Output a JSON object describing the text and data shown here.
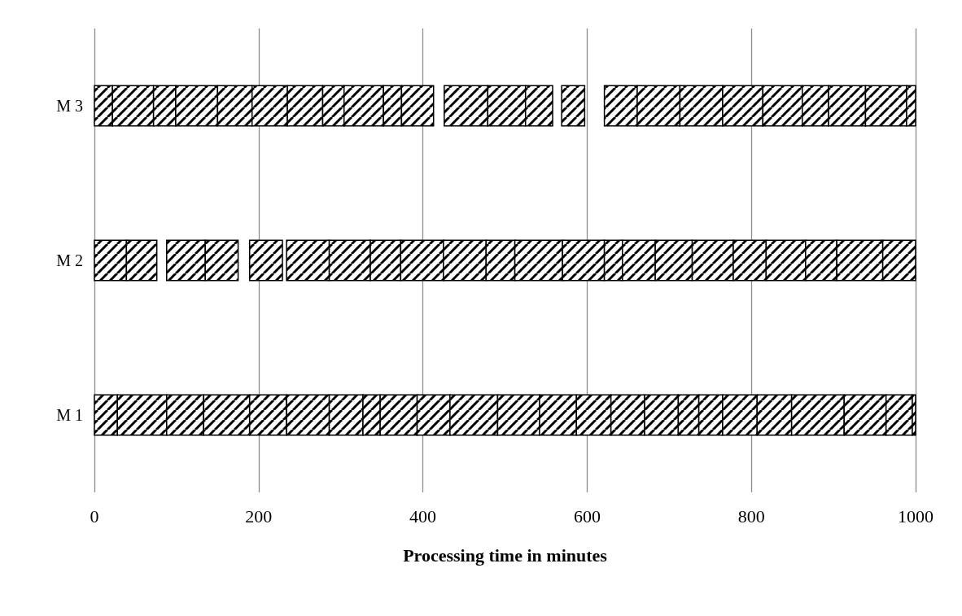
{
  "chart_data": {
    "type": "bar",
    "orientation": "horizontal",
    "xlabel": "Processing time in minutes",
    "categories": [
      "M 3",
      "M 2",
      "M 1"
    ],
    "xlim": [
      0,
      1000
    ],
    "xticks": [
      0,
      200,
      400,
      600,
      800,
      1000
    ],
    "grid": "x",
    "series": [
      {
        "color": "#000000",
        "base": [
          0,
          0,
          0
        ],
        "values": [
          22,
          39,
          28
        ]
      },
      {
        "color": "#000000",
        "base": [
          22,
          39,
          28
        ],
        "values": [
          50,
          37,
          60
        ]
      },
      {
        "color": "#000000",
        "base": [
          72,
          88,
          88
        ],
        "values": [
          27,
          47,
          45
        ]
      },
      {
        "color": "#000000",
        "base": [
          99,
          135,
          133
        ],
        "values": [
          51,
          40,
          56
        ]
      },
      {
        "color": "#000000",
        "base": [
          150,
          189,
          189
        ],
        "values": [
          42,
          40,
          45
        ]
      },
      {
        "color": "#000000",
        "base": [
          192,
          234,
          234
        ],
        "values": [
          43,
          52,
          52
        ]
      },
      {
        "color": "#000000",
        "base": [
          235,
          286,
          286
        ],
        "values": [
          43,
          50,
          41
        ]
      },
      {
        "color": "#000000",
        "base": [
          278,
          336,
          327
        ],
        "values": [
          26,
          37,
          21
        ]
      },
      {
        "color": "#000000",
        "base": [
          304,
          373,
          348
        ],
        "values": [
          48,
          52,
          45
        ]
      },
      {
        "color": "#000000",
        "base": [
          352,
          425,
          393
        ],
        "values": [
          22,
          52,
          40
        ]
      },
      {
        "color": "#000000",
        "base": [
          374,
          477,
          433
        ],
        "values": [
          39,
          35,
          58
        ]
      },
      {
        "color": "#000000",
        "base": [
          426,
          512,
          491
        ],
        "values": [
          53,
          58,
          51
        ]
      },
      {
        "color": "#000000",
        "base": [
          479,
          570,
          542
        ],
        "values": [
          46,
          51,
          45
        ]
      },
      {
        "color": "#000000",
        "base": [
          525,
          621,
          587
        ],
        "values": [
          33,
          22,
          42
        ]
      },
      {
        "color": "#000000",
        "base": [
          569,
          643,
          629
        ],
        "values": [
          28,
          40,
          41
        ]
      },
      {
        "color": "#000000",
        "base": [
          621,
          683,
          670
        ],
        "values": [
          40,
          45,
          41
        ]
      },
      {
        "color": "#000000",
        "base": [
          661,
          728,
          711
        ],
        "values": [
          52,
          50,
          25
        ]
      },
      {
        "color": "#000000",
        "base": [
          713,
          778,
          736
        ],
        "values": [
          52,
          40,
          29
        ]
      },
      {
        "color": "#000000",
        "base": [
          765,
          818,
          765
        ],
        "values": [
          49,
          48,
          42
        ]
      },
      {
        "color": "#000000",
        "base": [
          814,
          866,
          807
        ],
        "values": [
          48,
          38,
          42
        ]
      },
      {
        "color": "#000000",
        "base": [
          862,
          904,
          849
        ],
        "values": [
          32,
          56,
          64
        ]
      },
      {
        "color": "#000000",
        "base": [
          894,
          960,
          913
        ],
        "values": [
          45,
          40,
          51
        ]
      },
      {
        "color": "#000000",
        "base": [
          939,
          null,
          964
        ],
        "values": [
          50,
          null,
          32
        ]
      },
      {
        "color": "#000000",
        "base": [
          989,
          null,
          996
        ],
        "values": [
          11,
          null,
          4
        ]
      }
    ]
  }
}
